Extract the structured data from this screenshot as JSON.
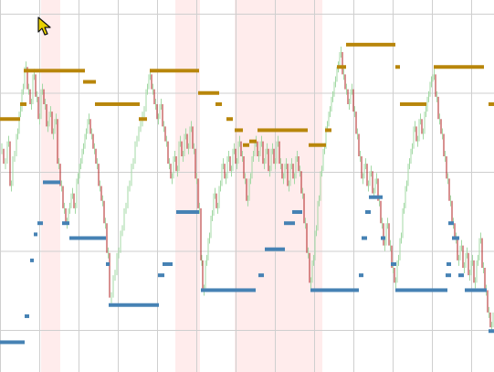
{
  "chart_data": {
    "type": "line",
    "title": "",
    "xlabel": "",
    "ylabel": "",
    "x_range": [
      0,
      541
    ],
    "y_range": [
      0,
      100
    ],
    "grid": true,
    "legend": "none",
    "colors": {
      "grid": "#cfcfcf",
      "band": "#ffecec",
      "upper_level": "#b8860b",
      "lower_level": "#4682b4",
      "trace_up": "#a3d9a5",
      "trace_down": "#b22222"
    },
    "shaded_bands": [
      [
        45,
        66
      ],
      [
        192,
        219
      ],
      [
        257,
        353
      ]
    ],
    "upper_level": [
      {
        "x": [
          0,
          22
        ],
        "y": 68
      },
      {
        "x": [
          22,
          29
        ],
        "y": 72
      },
      {
        "x": [
          26,
          93
        ],
        "y": 81
      },
      {
        "x": [
          91,
          105
        ],
        "y": 78
      },
      {
        "x": [
          104,
          153
        ],
        "y": 72
      },
      {
        "x": [
          152,
          161
        ],
        "y": 68
      },
      {
        "x": [
          164,
          218
        ],
        "y": 81
      },
      {
        "x": [
          217,
          240
        ],
        "y": 75
      },
      {
        "x": [
          236,
          243
        ],
        "y": 72
      },
      {
        "x": [
          248,
          255
        ],
        "y": 68
      },
      {
        "x": [
          257,
          266
        ],
        "y": 65
      },
      {
        "x": [
          266,
          273
        ],
        "y": 61
      },
      {
        "x": [
          273,
          281
        ],
        "y": 62
      },
      {
        "x": [
          282,
          337
        ],
        "y": 65
      },
      {
        "x": [
          338,
          357
        ],
        "y": 61
      },
      {
        "x": [
          356,
          363
        ],
        "y": 65
      },
      {
        "x": [
          369,
          379
        ],
        "y": 82
      },
      {
        "x": [
          379,
          433
        ],
        "y": 88
      },
      {
        "x": [
          433,
          438
        ],
        "y": 82
      },
      {
        "x": [
          438,
          467
        ],
        "y": 72
      },
      {
        "x": [
          475,
          530
        ],
        "y": 82
      },
      {
        "x": [
          535,
          541
        ],
        "y": 72
      }
    ],
    "lower_level": [
      {
        "x": [
          0,
          27
        ],
        "y": 8
      },
      {
        "x": [
          27,
          32
        ],
        "y": 15
      },
      {
        "x": [
          33,
          37
        ],
        "y": 30
      },
      {
        "x": [
          37,
          41
        ],
        "y": 37
      },
      {
        "x": [
          41,
          47
        ],
        "y": 40
      },
      {
        "x": [
          47,
          66
        ],
        "y": 51
      },
      {
        "x": [
          68,
          76
        ],
        "y": 40
      },
      {
        "x": [
          76,
          116
        ],
        "y": 36
      },
      {
        "x": [
          116,
          120
        ],
        "y": 29
      },
      {
        "x": [
          119,
          174
        ],
        "y": 18
      },
      {
        "x": [
          173,
          180
        ],
        "y": 26
      },
      {
        "x": [
          178,
          189
        ],
        "y": 29
      },
      {
        "x": [
          193,
          218
        ],
        "y": 43
      },
      {
        "x": [
          220,
          280
        ],
        "y": 22
      },
      {
        "x": [
          283,
          289
        ],
        "y": 26
      },
      {
        "x": [
          290,
          312
        ],
        "y": 33
      },
      {
        "x": [
          311,
          323
        ],
        "y": 40
      },
      {
        "x": [
          320,
          331
        ],
        "y": 43
      },
      {
        "x": [
          340,
          393
        ],
        "y": 22
      },
      {
        "x": [
          393,
          398
        ],
        "y": 26
      },
      {
        "x": [
          396,
          402
        ],
        "y": 36
      },
      {
        "x": [
          400,
          406
        ],
        "y": 43
      },
      {
        "x": [
          404,
          419
        ],
        "y": 47
      },
      {
        "x": [
          417,
          422
        ],
        "y": 36
      },
      {
        "x": [
          428,
          434
        ],
        "y": 29
      },
      {
        "x": [
          433,
          490
        ],
        "y": 22
      },
      {
        "x": [
          488,
          494
        ],
        "y": 26
      },
      {
        "x": [
          489,
          494
        ],
        "y": 29
      },
      {
        "x": [
          491,
          497
        ],
        "y": 40
      },
      {
        "x": [
          495,
          503
        ],
        "y": 36
      },
      {
        "x": [
          502,
          508
        ],
        "y": 26
      },
      {
        "x": [
          509,
          533
        ],
        "y": 22
      },
      {
        "x": [
          535,
          541
        ],
        "y": 11
      }
    ],
    "trace": [
      [
        0,
        60
      ],
      [
        4,
        56
      ],
      [
        8,
        62
      ],
      [
        11,
        50
      ],
      [
        14,
        58
      ],
      [
        18,
        64
      ],
      [
        21,
        70
      ],
      [
        24,
        76
      ],
      [
        27,
        82
      ],
      [
        30,
        76
      ],
      [
        33,
        72
      ],
      [
        36,
        80
      ],
      [
        39,
        74
      ],
      [
        42,
        68
      ],
      [
        45,
        76
      ],
      [
        48,
        72
      ],
      [
        51,
        66
      ],
      [
        54,
        70
      ],
      [
        57,
        64
      ],
      [
        60,
        68
      ],
      [
        63,
        56
      ],
      [
        66,
        50
      ],
      [
        69,
        44
      ],
      [
        72,
        40
      ],
      [
        75,
        44
      ],
      [
        78,
        48
      ],
      [
        81,
        44
      ],
      [
        84,
        52
      ],
      [
        87,
        56
      ],
      [
        90,
        60
      ],
      [
        93,
        64
      ],
      [
        96,
        68
      ],
      [
        99,
        64
      ],
      [
        102,
        60
      ],
      [
        105,
        56
      ],
      [
        108,
        50
      ],
      [
        111,
        46
      ],
      [
        114,
        40
      ],
      [
        117,
        32
      ],
      [
        120,
        20
      ],
      [
        124,
        26
      ],
      [
        128,
        32
      ],
      [
        132,
        38
      ],
      [
        136,
        44
      ],
      [
        140,
        50
      ],
      [
        144,
        56
      ],
      [
        148,
        62
      ],
      [
        152,
        66
      ],
      [
        156,
        70
      ],
      [
        160,
        76
      ],
      [
        163,
        80
      ],
      [
        166,
        76
      ],
      [
        169,
        72
      ],
      [
        172,
        68
      ],
      [
        175,
        72
      ],
      [
        178,
        66
      ],
      [
        181,
        62
      ],
      [
        184,
        56
      ],
      [
        187,
        52
      ],
      [
        190,
        58
      ],
      [
        193,
        54
      ],
      [
        196,
        62
      ],
      [
        199,
        58
      ],
      [
        202,
        64
      ],
      [
        205,
        60
      ],
      [
        208,
        66
      ],
      [
        211,
        60
      ],
      [
        214,
        52
      ],
      [
        217,
        44
      ],
      [
        220,
        30
      ],
      [
        222,
        22
      ],
      [
        225,
        30
      ],
      [
        228,
        36
      ],
      [
        231,
        42
      ],
      [
        234,
        48
      ],
      [
        237,
        44
      ],
      [
        240,
        50
      ],
      [
        243,
        56
      ],
      [
        246,
        52
      ],
      [
        249,
        58
      ],
      [
        252,
        54
      ],
      [
        255,
        60
      ],
      [
        258,
        56
      ],
      [
        261,
        62
      ],
      [
        264,
        58
      ],
      [
        267,
        52
      ],
      [
        270,
        46
      ],
      [
        273,
        52
      ],
      [
        276,
        58
      ],
      [
        279,
        62
      ],
      [
        282,
        58
      ],
      [
        285,
        62
      ],
      [
        288,
        56
      ],
      [
        291,
        60
      ],
      [
        294,
        54
      ],
      [
        297,
        60
      ],
      [
        300,
        56
      ],
      [
        303,
        62
      ],
      [
        306,
        56
      ],
      [
        309,
        52
      ],
      [
        312,
        56
      ],
      [
        315,
        50
      ],
      [
        318,
        56
      ],
      [
        321,
        52
      ],
      [
        324,
        58
      ],
      [
        327,
        54
      ],
      [
        330,
        48
      ],
      [
        333,
        40
      ],
      [
        336,
        32
      ],
      [
        339,
        24
      ],
      [
        342,
        30
      ],
      [
        345,
        38
      ],
      [
        348,
        46
      ],
      [
        351,
        54
      ],
      [
        354,
        60
      ],
      [
        357,
        66
      ],
      [
        360,
        70
      ],
      [
        363,
        74
      ],
      [
        366,
        78
      ],
      [
        369,
        82
      ],
      [
        372,
        86
      ],
      [
        375,
        80
      ],
      [
        378,
        76
      ],
      [
        381,
        72
      ],
      [
        384,
        76
      ],
      [
        387,
        70
      ],
      [
        390,
        64
      ],
      [
        393,
        58
      ],
      [
        396,
        52
      ],
      [
        399,
        56
      ],
      [
        402,
        50
      ],
      [
        405,
        54
      ],
      [
        408,
        48
      ],
      [
        411,
        52
      ],
      [
        414,
        46
      ],
      [
        417,
        40
      ],
      [
        420,
        34
      ],
      [
        423,
        40
      ],
      [
        426,
        34
      ],
      [
        429,
        28
      ],
      [
        432,
        24
      ],
      [
        435,
        30
      ],
      [
        438,
        36
      ],
      [
        441,
        44
      ],
      [
        444,
        50
      ],
      [
        447,
        56
      ],
      [
        450,
        60
      ],
      [
        453,
        66
      ],
      [
        456,
        62
      ],
      [
        459,
        68
      ],
      [
        462,
        64
      ],
      [
        465,
        70
      ],
      [
        468,
        74
      ],
      [
        471,
        78
      ],
      [
        474,
        80
      ],
      [
        477,
        74
      ],
      [
        480,
        68
      ],
      [
        483,
        64
      ],
      [
        486,
        58
      ],
      [
        489,
        52
      ],
      [
        492,
        46
      ],
      [
        495,
        40
      ],
      [
        498,
        36
      ],
      [
        501,
        30
      ],
      [
        504,
        34
      ],
      [
        507,
        28
      ],
      [
        510,
        32
      ],
      [
        513,
        26
      ],
      [
        516,
        30
      ],
      [
        519,
        24
      ],
      [
        522,
        30
      ],
      [
        525,
        36
      ],
      [
        528,
        28
      ],
      [
        531,
        22
      ],
      [
        534,
        16
      ],
      [
        537,
        12
      ],
      [
        540,
        16
      ]
    ]
  }
}
